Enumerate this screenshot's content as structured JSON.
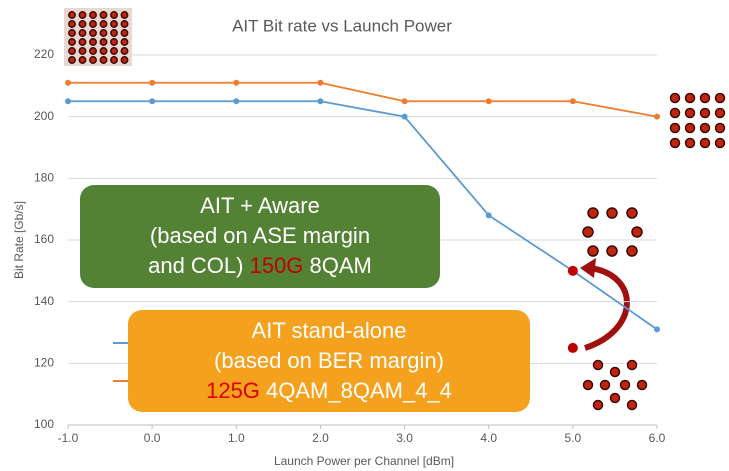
{
  "chart_data": {
    "type": "line",
    "title": "AIT Bit rate vs Launch Power",
    "x_label": "Launch Power per Channel [dBm]",
    "y_label": "Bit Rate [Gb/s]",
    "x": [
      -1,
      0,
      1,
      2,
      3,
      4,
      5,
      6
    ],
    "series": [
      {
        "color": "#ed7d31",
        "values": [
          211,
          211,
          211,
          211,
          205,
          205,
          205,
          200
        ]
      },
      {
        "color": "#5b9bd5",
        "values": [
          205,
          205,
          205,
          205,
          200,
          168,
          150,
          131
        ]
      }
    ],
    "xlim": [
      -1,
      6
    ],
    "xticks": [
      {
        "value": -1,
        "label": "-1.0"
      },
      {
        "value": 0,
        "label": "0.0"
      },
      {
        "value": 1,
        "label": "1.0"
      },
      {
        "value": 2,
        "label": "2.0"
      },
      {
        "value": 3,
        "label": "3.0"
      },
      {
        "value": 4,
        "label": "4.0"
      },
      {
        "value": 5,
        "label": "5.0"
      },
      {
        "value": 6,
        "label": "6.0"
      }
    ],
    "ylim": [
      100,
      220
    ],
    "yticks": [
      100,
      120,
      140,
      160,
      180,
      200,
      220
    ],
    "grid": true,
    "highlight_points": [
      {
        "x": 5,
        "y": 150,
        "color": "#c00000"
      },
      {
        "x": 5,
        "y": 125,
        "color": "#c00000"
      }
    ],
    "annotations": [
      {
        "background": "#548235",
        "lines": [
          [
            {
              "text": "AIT + Aware"
            }
          ],
          [
            {
              "text": "(based on ASE margin"
            }
          ],
          [
            {
              "text": "and COL) "
            },
            {
              "text": "150G",
              "color": "#c00000"
            },
            {
              "text": " 8QAM"
            }
          ]
        ]
      },
      {
        "background": "#f4a11e",
        "lines": [
          [
            {
              "text": "AIT stand-alone"
            }
          ],
          [
            {
              "text": "(based on BER margin)"
            }
          ],
          [
            {
              "text": "125G",
              "color": "#e00000"
            },
            {
              "text": " 4QAM_8QAM_4_4"
            }
          ]
        ]
      }
    ]
  }
}
